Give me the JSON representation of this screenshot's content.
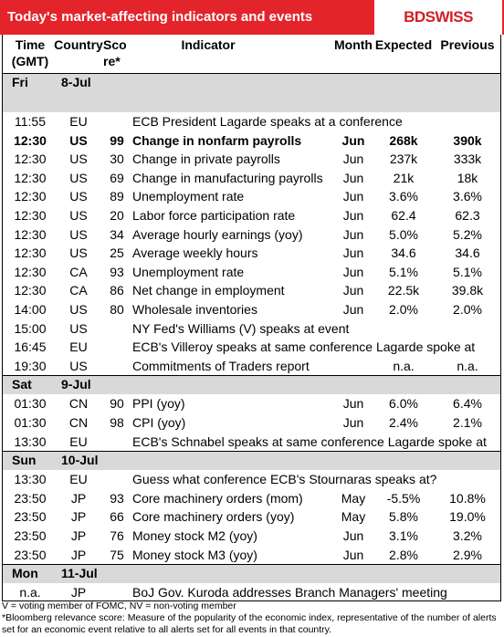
{
  "header": {
    "title": "Today's market-affecting indicators and events",
    "logo": "BDSWISS"
  },
  "table": {
    "columns": [
      [
        "Time",
        "(GMT)"
      ],
      [
        "Country"
      ],
      [
        "Sco",
        "re*"
      ],
      [
        "Indicator"
      ],
      [
        "Month"
      ],
      [
        "Expected"
      ],
      [
        "Previous"
      ]
    ],
    "sections": [
      {
        "day": "Fri",
        "date": "8-Jul",
        "rows": [
          {
            "cells": [
              "11:55",
              "EU",
              null,
              "ECB President Lagarde speaks at a conference",
              null,
              null,
              null
            ]
          },
          {
            "cells": [
              "12:30",
              "US",
              "99",
              "Change in nonfarm payrolls",
              "Jun",
              "268k",
              "390k"
            ],
            "bold": true
          },
          {
            "cells": [
              "12:30",
              "US",
              "30",
              "Change in private payrolls",
              "Jun",
              "237k",
              "333k"
            ]
          },
          {
            "cells": [
              "12:30",
              "US",
              "69",
              "Change in manufacturing payrolls",
              "Jun",
              "21k",
              "18k"
            ]
          },
          {
            "cells": [
              "12:30",
              "US",
              "89",
              "Unemployment rate",
              "Jun",
              "3.6%",
              "3.6%"
            ]
          },
          {
            "cells": [
              "12:30",
              "US",
              "20",
              "Labor force participation rate",
              "Jun",
              "62.4",
              "62.3"
            ]
          },
          {
            "cells": [
              "12:30",
              "US",
              "34",
              "Average hourly earnings (yoy)",
              "Jun",
              "5.0%",
              "5.2%"
            ]
          },
          {
            "cells": [
              "12:30",
              "US",
              "25",
              "Average weekly hours",
              "Jun",
              "34.6",
              "34.6"
            ]
          },
          {
            "cells": [
              "12:30",
              "CA",
              "93",
              "Unemployment rate",
              "Jun",
              "5.1%",
              "5.1%"
            ]
          },
          {
            "cells": [
              "12:30",
              "CA",
              "86",
              "Net change in employment",
              "Jun",
              "22.5k",
              "39.8k"
            ]
          },
          {
            "cells": [
              "14:00",
              "US",
              "80",
              "Wholesale inventories",
              "Jun",
              "2.0%",
              "2.0%"
            ]
          },
          {
            "cells": [
              "15:00",
              "US",
              null,
              "NY Fed's Williams (V) speaks at event",
              null,
              null,
              null
            ]
          },
          {
            "cells": [
              "16:45",
              "EU",
              null,
              "ECB's Villeroy speaks at same conference Lagarde spoke at",
              null,
              null,
              null
            ]
          },
          {
            "cells": [
              "19:30",
              "US",
              null,
              "Commitments of Traders  report",
              null,
              "n.a.",
              "n.a."
            ]
          }
        ]
      },
      {
        "day": "Sat",
        "date": "9-Jul",
        "rows": [
          {
            "cells": [
              "01:30",
              "CN",
              "90",
              "PPI (yoy)",
              "Jun",
              "6.0%",
              "6.4%"
            ]
          },
          {
            "cells": [
              "01:30",
              "CN",
              "98",
              "CPI (yoy)",
              "Jun",
              "2.4%",
              "2.1%"
            ]
          },
          {
            "cells": [
              "13:30",
              "EU",
              null,
              "ECB's Schnabel speaks at same conference Lagarde spoke at",
              null,
              null,
              null
            ]
          }
        ]
      },
      {
        "day": "Sun",
        "date": "10-Jul",
        "rows": [
          {
            "cells": [
              "13:30",
              "EU",
              null,
              "Guess what conference ECB's Stournaras speaks at?",
              null,
              null,
              null
            ]
          },
          {
            "cells": [
              "23:50",
              "JP",
              "93",
              "Core machinery orders (mom)",
              "May",
              "-5.5%",
              "10.8%"
            ]
          },
          {
            "cells": [
              "23:50",
              "JP",
              "66",
              "Core machinery orders (yoy)",
              "May",
              "5.8%",
              "19.0%"
            ]
          },
          {
            "cells": [
              "23:50",
              "JP",
              "76",
              "Money stock M2 (yoy)",
              "Jun",
              "3.1%",
              "3.2%"
            ]
          },
          {
            "cells": [
              "23:50",
              "JP",
              "75",
              "Money stock M3 (yoy)",
              "Jun",
              "2.8%",
              "2.9%"
            ]
          }
        ]
      },
      {
        "day": "Mon",
        "date": "11-Jul",
        "rows": [
          {
            "cells": [
              "n.a.",
              "JP",
              null,
              "BoJ Gov. Kuroda addresses Branch Managers' meeting",
              null,
              null,
              null
            ]
          }
        ]
      }
    ]
  },
  "footnotes": [
    "V = voting member of FOMC, NV = non-voting member",
    "*Bloomberg relevance score:  Measure of the popularity of the economic index, representative of the number of alerts set for an economic event relative to all alerts set for all events in that country."
  ]
}
